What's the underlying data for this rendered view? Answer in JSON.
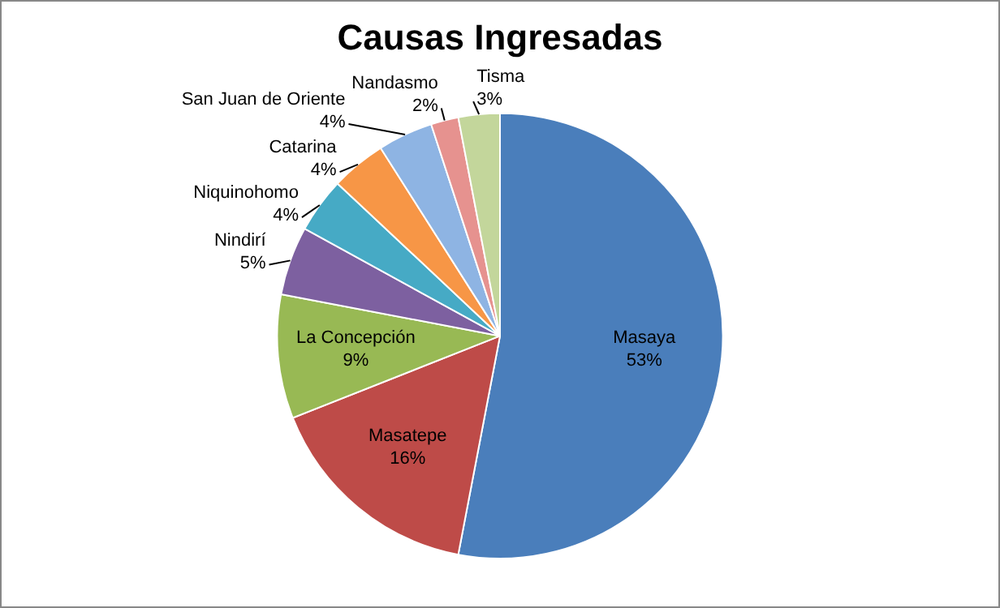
{
  "chart_data": {
    "type": "pie",
    "title": "Causas Ingresadas",
    "categories": [
      "Masaya",
      "Masatepe",
      "La Concepción",
      "Nindirí",
      "Niquinohomo",
      "Catarina",
      "San Juan de Oriente",
      "Nandasmo",
      "Tisma"
    ],
    "values": [
      53,
      16,
      9,
      5,
      4,
      4,
      4,
      2,
      3
    ],
    "value_labels": [
      "53%",
      "16%",
      "9%",
      "5%",
      "4%",
      "4%",
      "4%",
      "2%",
      "3%"
    ],
    "colors": [
      "#4a7ebb",
      "#be4b48",
      "#98b954",
      "#7d60a0",
      "#46aac5",
      "#f79646",
      "#8eb4e3",
      "#e6928f",
      "#c3d69b"
    ],
    "legend": false
  }
}
